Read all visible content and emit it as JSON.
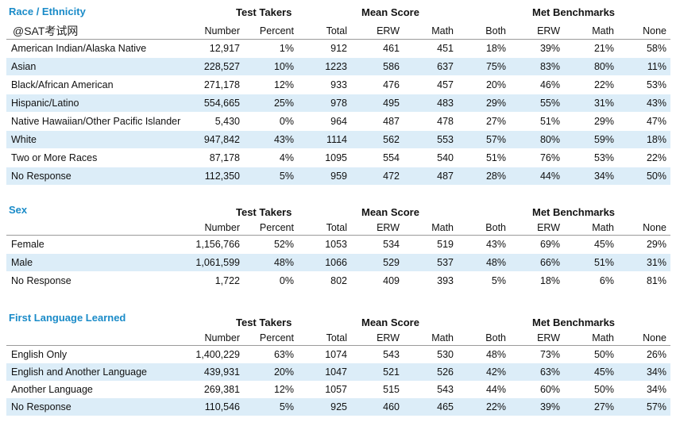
{
  "watermark": "@SAT考试网",
  "headers": {
    "test_takers": "Test Takers",
    "mean_score": "Mean Score",
    "met_benchmarks": "Met Benchmarks",
    "number": "Number",
    "percent": "Percent",
    "total": "Total",
    "erw": "ERW",
    "math": "Math",
    "both": "Both",
    "none": "None"
  },
  "sections": [
    {
      "title": "Race / Ethnicity",
      "rows": [
        [
          "American Indian/Alaska Native",
          "12,917",
          "1%",
          "912",
          "461",
          "451",
          "18%",
          "39%",
          "21%",
          "58%"
        ],
        [
          "Asian",
          "228,527",
          "10%",
          "1223",
          "586",
          "637",
          "75%",
          "83%",
          "80%",
          "11%"
        ],
        [
          "Black/African American",
          "271,178",
          "12%",
          "933",
          "476",
          "457",
          "20%",
          "46%",
          "22%",
          "53%"
        ],
        [
          "Hispanic/Latino",
          "554,665",
          "25%",
          "978",
          "495",
          "483",
          "29%",
          "55%",
          "31%",
          "43%"
        ],
        [
          "Native Hawaiian/Other Pacific Islander",
          "5,430",
          "0%",
          "964",
          "487",
          "478",
          "27%",
          "51%",
          "29%",
          "47%"
        ],
        [
          "White",
          "947,842",
          "43%",
          "1114",
          "562",
          "553",
          "57%",
          "80%",
          "59%",
          "18%"
        ],
        [
          "Two or More Races",
          "87,178",
          "4%",
          "1095",
          "554",
          "540",
          "51%",
          "76%",
          "53%",
          "22%"
        ],
        [
          "No Response",
          "112,350",
          "5%",
          "959",
          "472",
          "487",
          "28%",
          "44%",
          "34%",
          "50%"
        ]
      ]
    },
    {
      "title": "Sex",
      "rows": [
        [
          "Female",
          "1,156,766",
          "52%",
          "1053",
          "534",
          "519",
          "43%",
          "69%",
          "45%",
          "29%"
        ],
        [
          "Male",
          "1,061,599",
          "48%",
          "1066",
          "529",
          "537",
          "48%",
          "66%",
          "51%",
          "31%"
        ],
        [
          "No Response",
          "1,722",
          "0%",
          "802",
          "409",
          "393",
          "5%",
          "18%",
          "6%",
          "81%"
        ]
      ]
    },
    {
      "title": "First Language Learned",
      "rows": [
        [
          "English Only",
          "1,400,229",
          "63%",
          "1074",
          "543",
          "530",
          "48%",
          "73%",
          "50%",
          "26%"
        ],
        [
          "English and Another Language",
          "439,931",
          "20%",
          "1047",
          "521",
          "526",
          "42%",
          "63%",
          "45%",
          "34%"
        ],
        [
          "Another Language",
          "269,381",
          "12%",
          "1057",
          "515",
          "543",
          "44%",
          "60%",
          "50%",
          "34%"
        ],
        [
          "No Response",
          "110,546",
          "5%",
          "925",
          "460",
          "465",
          "22%",
          "39%",
          "27%",
          "57%"
        ]
      ]
    }
  ]
}
